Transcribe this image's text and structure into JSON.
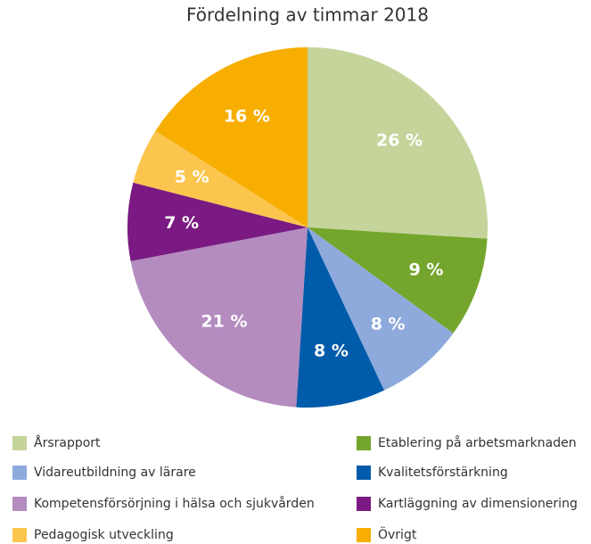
{
  "chart_data": {
    "type": "pie",
    "title": "Fördelning av timmar 2018",
    "categories": [
      "Årsrapport",
      "Etablering på arbetsmarknaden",
      "Vidareutbildning av lärare",
      "Kvalitetsförstärkning",
      "Kompetensförsörjning i hälsa och sjukvården",
      "Kartläggning av dimensionering",
      "Pedagogisk utveckling",
      "Övrigt"
    ],
    "values": [
      26,
      9,
      8,
      8,
      21,
      7,
      5,
      16
    ],
    "value_labels": [
      "26 %",
      "9 %",
      "8 %",
      "8 %",
      "21 %",
      "7 %",
      "5 %",
      "16 %"
    ],
    "colors": [
      "#c5d49a",
      "#74a52c",
      "#8eaadc",
      "#005baa",
      "#b48cc0",
      "#7a1a82",
      "#fcc54d",
      "#f7ae00"
    ]
  }
}
